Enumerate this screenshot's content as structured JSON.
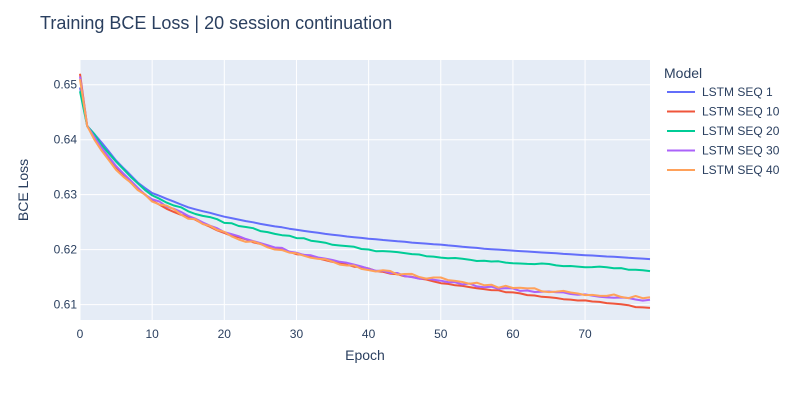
{
  "chart_data": {
    "type": "line",
    "title": "Training BCE Loss | 20 session continuation",
    "xlabel": "Epoch",
    "ylabel": "BCE Loss",
    "xlim": [
      0,
      79
    ],
    "ylim": [
      0.6072,
      0.6545
    ],
    "x_ticks": [
      0,
      10,
      20,
      30,
      40,
      50,
      60,
      70
    ],
    "y_ticks": [
      0.61,
      0.62,
      0.63,
      0.64,
      0.65
    ],
    "grid": true,
    "legend_title": "Model",
    "legend_position": "right",
    "plot_background": "#e5ecf6",
    "series": [
      {
        "name": "LSTM SEQ 1",
        "color": "#636efa",
        "anchors": [
          [
            0,
            0.6495
          ],
          [
            1,
            0.6425
          ],
          [
            2,
            0.641
          ],
          [
            3,
            0.6395
          ],
          [
            5,
            0.6362
          ],
          [
            8,
            0.6322
          ],
          [
            10,
            0.6303
          ],
          [
            15,
            0.6277
          ],
          [
            20,
            0.626
          ],
          [
            25,
            0.6247
          ],
          [
            30,
            0.6236
          ],
          [
            35,
            0.6227
          ],
          [
            40,
            0.622
          ],
          [
            45,
            0.6214
          ],
          [
            50,
            0.6209
          ],
          [
            55,
            0.6203
          ],
          [
            60,
            0.6198
          ],
          [
            65,
            0.6194
          ],
          [
            70,
            0.619
          ],
          [
            75,
            0.6186
          ],
          [
            79,
            0.6183
          ]
        ]
      },
      {
        "name": "LSTM SEQ 10",
        "color": "#ef553b",
        "anchors": [
          [
            0,
            0.652
          ],
          [
            1,
            0.6425
          ],
          [
            2,
            0.6405
          ],
          [
            3,
            0.6383
          ],
          [
            5,
            0.635
          ],
          [
            8,
            0.631
          ],
          [
            10,
            0.629
          ],
          [
            13,
            0.6268
          ],
          [
            15,
            0.626
          ],
          [
            20,
            0.623
          ],
          [
            25,
            0.621
          ],
          [
            30,
            0.6193
          ],
          [
            35,
            0.6178
          ],
          [
            40,
            0.6165
          ],
          [
            45,
            0.6152
          ],
          [
            50,
            0.614
          ],
          [
            55,
            0.613
          ],
          [
            60,
            0.6122
          ],
          [
            65,
            0.6113
          ],
          [
            70,
            0.6107
          ],
          [
            75,
            0.61
          ],
          [
            79,
            0.6093
          ]
        ]
      },
      {
        "name": "LSTM SEQ 20",
        "color": "#00cc96",
        "anchors": [
          [
            0,
            0.6488
          ],
          [
            1,
            0.6425
          ],
          [
            2,
            0.641
          ],
          [
            3,
            0.639
          ],
          [
            5,
            0.636
          ],
          [
            8,
            0.632
          ],
          [
            10,
            0.6298
          ],
          [
            15,
            0.627
          ],
          [
            20,
            0.625
          ],
          [
            25,
            0.6235
          ],
          [
            30,
            0.6222
          ],
          [
            35,
            0.621
          ],
          [
            40,
            0.62
          ],
          [
            45,
            0.6193
          ],
          [
            50,
            0.6186
          ],
          [
            55,
            0.618
          ],
          [
            60,
            0.6176
          ],
          [
            65,
            0.6173
          ],
          [
            70,
            0.6169
          ],
          [
            75,
            0.6166
          ],
          [
            79,
            0.616
          ]
        ]
      },
      {
        "name": "LSTM SEQ 30",
        "color": "#ab63fa",
        "anchors": [
          [
            0,
            0.6515
          ],
          [
            1,
            0.6425
          ],
          [
            2,
            0.6405
          ],
          [
            3,
            0.6385
          ],
          [
            5,
            0.6352
          ],
          [
            8,
            0.6312
          ],
          [
            10,
            0.6292
          ],
          [
            15,
            0.6262
          ],
          [
            20,
            0.6232
          ],
          [
            25,
            0.6212
          ],
          [
            30,
            0.6195
          ],
          [
            35,
            0.618
          ],
          [
            40,
            0.6166
          ],
          [
            45,
            0.6153
          ],
          [
            50,
            0.6143
          ],
          [
            55,
            0.6135
          ],
          [
            60,
            0.6128
          ],
          [
            65,
            0.6122
          ],
          [
            70,
            0.6118
          ],
          [
            75,
            0.6113
          ],
          [
            79,
            0.6108
          ]
        ]
      },
      {
        "name": "LSTM SEQ 40",
        "color": "#ffa15a",
        "anchors": [
          [
            0,
            0.651
          ],
          [
            1,
            0.6425
          ],
          [
            2,
            0.64
          ],
          [
            3,
            0.638
          ],
          [
            5,
            0.6345
          ],
          [
            8,
            0.6308
          ],
          [
            10,
            0.629
          ],
          [
            15,
            0.6258
          ],
          [
            20,
            0.623
          ],
          [
            25,
            0.6208
          ],
          [
            30,
            0.6193
          ],
          [
            35,
            0.6178
          ],
          [
            40,
            0.6165
          ],
          [
            45,
            0.6155
          ],
          [
            50,
            0.6147
          ],
          [
            55,
            0.6138
          ],
          [
            60,
            0.613
          ],
          [
            65,
            0.6125
          ],
          [
            70,
            0.612
          ],
          [
            75,
            0.6115
          ],
          [
            79,
            0.6113
          ]
        ]
      }
    ]
  }
}
